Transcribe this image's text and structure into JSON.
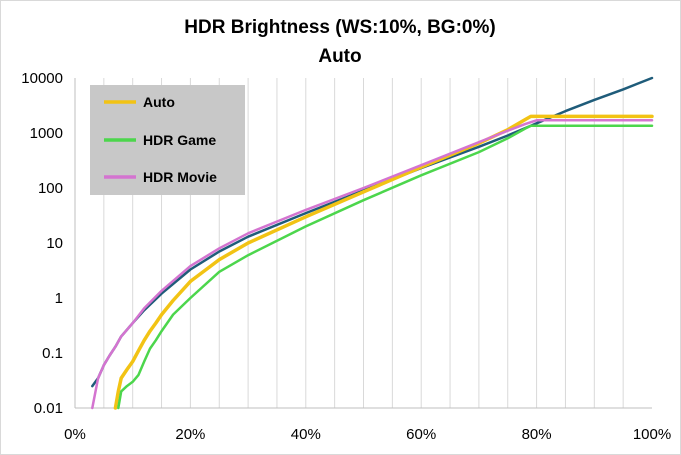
{
  "chart_data": {
    "type": "line",
    "title": "HDR Brightness (WS:10%, BG:0%)",
    "subtitle": "Auto",
    "xlabel": "",
    "ylabel": "",
    "x_scale": "linear",
    "y_scale": "log",
    "xlim": [
      0,
      100
    ],
    "ylim": [
      0.01,
      10000
    ],
    "x_ticks": [
      "0%",
      "20%",
      "40%",
      "60%",
      "80%",
      "100%"
    ],
    "y_ticks": [
      "0.01",
      "0.1",
      "1",
      "10",
      "100",
      "1000",
      "10000"
    ],
    "grid": "vertical minor every 5%",
    "legend_position": "top-left",
    "series": [
      {
        "name": "",
        "color": "#1f5c7a",
        "x": [
          3,
          4,
          5,
          6,
          7,
          8,
          10,
          12,
          15,
          20,
          25,
          30,
          40,
          50,
          60,
          70,
          75,
          80,
          85,
          90,
          95,
          100
        ],
        "y": [
          0.025,
          0.035,
          0.06,
          0.09,
          0.13,
          0.2,
          0.35,
          0.6,
          1.2,
          3.3,
          7.0,
          13,
          35,
          90,
          230,
          560,
          900,
          1500,
          2500,
          4000,
          6200,
          10000
        ]
      },
      {
        "name": "Auto",
        "color": "#f2c314",
        "x": [
          7,
          7.5,
          8,
          9,
          10,
          11,
          12,
          13,
          14,
          15,
          17,
          20,
          25,
          30,
          40,
          50,
          60,
          70,
          75,
          78,
          79,
          100
        ],
        "y": [
          0.01,
          0.02,
          0.035,
          0.05,
          0.07,
          0.11,
          0.17,
          0.25,
          0.35,
          0.5,
          0.9,
          2.0,
          5.0,
          10,
          30,
          85,
          240,
          650,
          1150,
          1750,
          2000,
          2000
        ]
      },
      {
        "name": "HDR Game",
        "color": "#4cd64c",
        "x": [
          7.5,
          8,
          9,
          10,
          11,
          12,
          13,
          14,
          15,
          17,
          20,
          25,
          30,
          40,
          50,
          60,
          70,
          75,
          78,
          79,
          100
        ],
        "y": [
          0.01,
          0.02,
          0.025,
          0.03,
          0.04,
          0.07,
          0.12,
          0.17,
          0.25,
          0.5,
          1.0,
          3.0,
          6.0,
          20,
          60,
          170,
          450,
          800,
          1200,
          1350,
          1350
        ]
      },
      {
        "name": "HDR Movie",
        "color": "#d474d0",
        "x": [
          3,
          4,
          5,
          6,
          7,
          8,
          10,
          12,
          15,
          20,
          25,
          30,
          40,
          50,
          60,
          70,
          75,
          78,
          80,
          100
        ],
        "y": [
          0.01,
          0.035,
          0.06,
          0.09,
          0.13,
          0.2,
          0.35,
          0.65,
          1.35,
          3.8,
          8.0,
          15,
          40,
          100,
          260,
          680,
          1100,
          1450,
          1700,
          1700
        ]
      }
    ]
  }
}
